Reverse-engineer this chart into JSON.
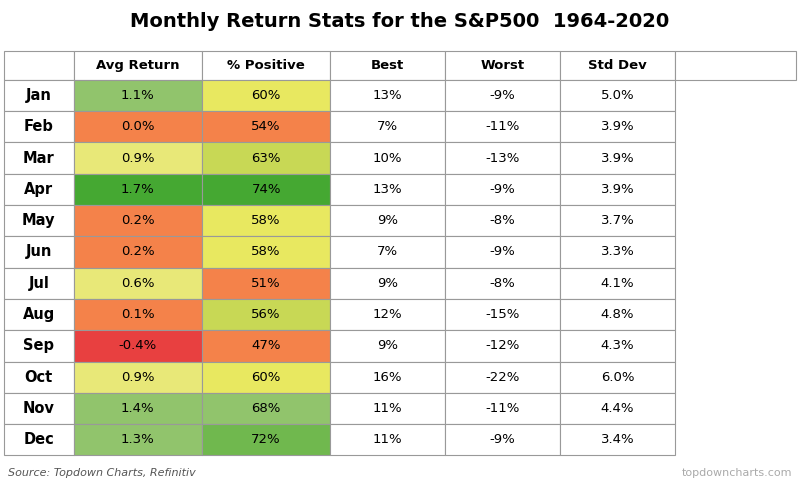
{
  "title": "Monthly Return Stats for the S&P500  1964-2020",
  "months": [
    "Jan",
    "Feb",
    "Mar",
    "Apr",
    "May",
    "Jun",
    "Jul",
    "Aug",
    "Sep",
    "Oct",
    "Nov",
    "Dec"
  ],
  "columns": [
    "Avg Return",
    "% Positive",
    "Best",
    "Worst",
    "Std Dev"
  ],
  "avg_return": [
    "1.1%",
    "0.0%",
    "0.9%",
    "1.7%",
    "0.2%",
    "0.2%",
    "0.6%",
    "0.1%",
    "-0.4%",
    "0.9%",
    "1.4%",
    "1.3%"
  ],
  "pct_positive": [
    "60%",
    "54%",
    "63%",
    "74%",
    "58%",
    "58%",
    "51%",
    "56%",
    "47%",
    "60%",
    "68%",
    "72%"
  ],
  "best": [
    "13%",
    "7%",
    "10%",
    "13%",
    "9%",
    "7%",
    "9%",
    "12%",
    "9%",
    "16%",
    "11%",
    "11%"
  ],
  "worst": [
    "-9%",
    "-11%",
    "-13%",
    "-9%",
    "-8%",
    "-9%",
    "-8%",
    "-15%",
    "-12%",
    "-22%",
    "-11%",
    "-9%"
  ],
  "std_dev": [
    "5.0%",
    "3.9%",
    "3.9%",
    "3.9%",
    "3.7%",
    "3.3%",
    "4.1%",
    "4.8%",
    "4.3%",
    "6.0%",
    "4.4%",
    "3.4%"
  ],
  "avg_return_colors": [
    "#91c46c",
    "#f4824a",
    "#e8e878",
    "#45a832",
    "#f4824a",
    "#f4824a",
    "#e8e878",
    "#f4824a",
    "#e84040",
    "#e8e878",
    "#91c46c",
    "#91c46c"
  ],
  "pct_positive_colors": [
    "#e8e860",
    "#f4824a",
    "#c8d855",
    "#45a832",
    "#e8e860",
    "#e8e860",
    "#f4824a",
    "#c8d855",
    "#f4824a",
    "#e8e860",
    "#91c46c",
    "#70b84e"
  ],
  "white": "#ffffff",
  "border_color": "#999999",
  "source_text": "Source: Topdown Charts, Refinitiv",
  "watermark_text": "topdowncharts.com",
  "title_fontsize": 14,
  "header_fontsize": 9.5,
  "cell_fontsize": 9.5,
  "month_fontsize": 10.5
}
